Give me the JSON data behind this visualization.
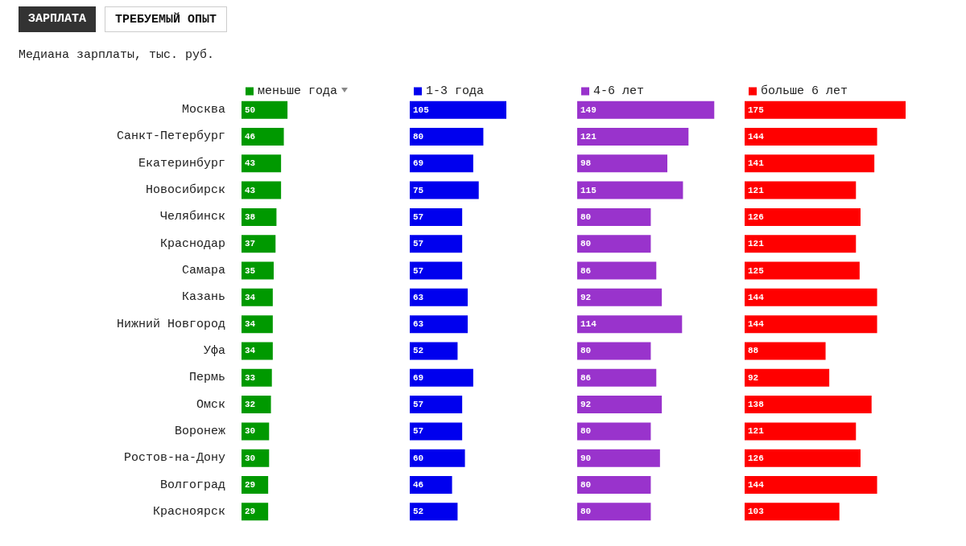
{
  "chart_data": [
    {
      "type": "bar",
      "orientation": "horizontal",
      "subtitle": "Медиана зарплаты, тыс. руб.",
      "annotations": [
        "ЗАРПЛАТА",
        "ТРЕБУЕМЫЙ ОПЫТ"
      ],
      "categories": [
        "Москва",
        "Санкт-Петербург",
        "Екатеринбург",
        "Новосибирск",
        "Челябинск",
        "Краснодар",
        "Самара",
        "Казань",
        "Нижний Новгород",
        "Уфа",
        "Пермь",
        "Омск",
        "Воронеж",
        "Ростов-на-Дону",
        "Волгоград",
        "Красноярск"
      ],
      "tick_labels": "y",
      "legend": "top",
      "data_labels": true,
      "series": [
        {
          "name": "меньше года",
          "color": "#009900",
          "values": [
            50,
            46,
            43,
            43,
            38,
            37,
            35,
            34,
            34,
            34,
            33,
            32,
            30,
            30,
            29,
            29
          ]
        }
      ]
    },
    {
      "type": "bar",
      "orientation": "horizontal",
      "tick_labels": false,
      "legend": "top",
      "data_labels": true,
      "series": [
        {
          "name": "1-3 года",
          "color": "#0000ee",
          "values": [
            105,
            80,
            69,
            75,
            57,
            57,
            57,
            63,
            63,
            52,
            69,
            57,
            57,
            60,
            46,
            52
          ]
        }
      ]
    },
    {
      "type": "bar",
      "orientation": "horizontal",
      "tick_labels": false,
      "legend": "top",
      "data_labels": true,
      "series": [
        {
          "name": "4-6 лет",
          "color": "#9933cc",
          "values": [
            149,
            121,
            98,
            115,
            80,
            80,
            86,
            92,
            114,
            80,
            86,
            92,
            80,
            90,
            80,
            80
          ]
        }
      ]
    },
    {
      "type": "bar",
      "orientation": "horizontal",
      "tick_labels": false,
      "legend": "top",
      "data_labels": true,
      "series": [
        {
          "name": "больше 6 лет",
          "color": "#ff0000",
          "values": [
            175,
            144,
            141,
            121,
            126,
            121,
            125,
            144,
            144,
            88,
            92,
            138,
            121,
            126,
            144,
            103
          ]
        }
      ]
    }
  ]
}
